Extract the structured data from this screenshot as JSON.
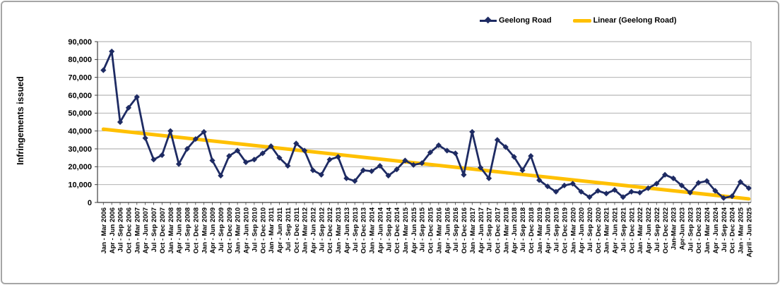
{
  "figure": {
    "background": "#ffffff",
    "border_color": "#a6a6a6"
  },
  "colors": {
    "series": "#1e2b63",
    "trend": "#ffc000",
    "gridline": "#a6a6a6",
    "axis": "#3f3f3f",
    "text": "#000000"
  },
  "chart_data": {
    "type": "line",
    "title": "",
    "xlabel": "",
    "ylabel": "Infringements issued",
    "ylim": [
      0,
      90000
    ],
    "ytick_step": 10000,
    "grid": "horizontal-only",
    "legend_position": "top-center",
    "marker": "diamond",
    "categories": [
      "Jan - Mar 2006",
      "Apr - Jun 2006",
      "Jul - Sep 2006",
      "Oct - Dec 2006",
      "Jan - Mar 2007",
      "Apr - Jun 2007",
      "Jul - Sep 2007",
      "Oct - Dec 2007",
      "Jan - Mar 2008",
      "Apr - Jun 2008",
      "Jul - Sep 2008",
      "Oct - Dec 2008",
      "Jan - Mar 2009",
      "Apr - Jun 2009",
      "Jul - Sep 2009",
      "Oct - Dec 2009",
      "Jan - Mar 2010",
      "Apr - Jun 2010",
      "Jul - Sep 2010",
      "Oct - Dec 2010",
      "Jan - Mar 2011",
      "Apr - Jun 2011",
      "Jul - Sep 2011",
      "Oct - Dec 2011",
      "Jan - Mar 2012",
      "Apr - Jun 2012",
      "Jul - Sep 2012",
      "Oct - Dec 2012",
      "Jan - Mar 2013",
      "Apr - Jun 2013",
      "Jul - Sep 2013",
      "Oct - Dec 2013",
      "Jan - Mar 2014",
      "Apr - Jun 2014",
      "Jul - Sep 2014",
      "Oct - Dec 2014",
      "Jan - Mar 2015",
      "Apr - Jun 2015",
      "Jul - Sep 2015",
      "Oct - Dec 2015",
      "Jan - Mar 2016",
      "Apr - Jun 2016",
      "Jul - Sep 2016",
      "Oct - Dec 2016",
      "Jan - Mar 2017",
      "Apr - Jun 2017",
      "Jul - Sep 2017",
      "Oct - Dec 2017",
      "Jan - Mar 2018",
      "Apr - Jun 2018",
      "Jul - Sep 2018",
      "Oct - Dec 2018",
      "Jan - Mar 2019",
      "Apr - Jun 2019",
      "Jul - Sep 2019",
      "Oct - Dec 2019",
      "Jan - Mar 2020",
      "Apr - Jun 2020",
      "Jul - Sep 2020",
      "Oct - Dec 2020",
      "Jan - Mar 2021",
      "Apr - Jun 2021",
      "Jul - Sep 2021",
      "Oct - Dec 2021",
      "Jan - Mar 2022",
      "Apr - Jun 2022",
      "Jul - Sep 2022",
      "Oct - Dec 2022",
      "Jan-Mar 2023",
      "Apr-Jun 2023",
      "Jul - Sep 2023",
      "Oct - Dec 2023",
      "Jan - Mar 2024",
      "Apr - Jun 2024",
      "Jul - Sep 2024",
      "Oct - Dec 2024",
      "Jan - Mar 2025",
      "April - Jun 2025"
    ],
    "series": [
      {
        "name": "Geelong Road",
        "color": "#1e2b63",
        "marker": "diamond",
        "values": [
          74000,
          84500,
          45000,
          53000,
          59000,
          36000,
          24000,
          26500,
          40000,
          21500,
          30000,
          35500,
          39500,
          23500,
          15000,
          26000,
          29000,
          22500,
          24000,
          27500,
          31500,
          25000,
          20500,
          33000,
          29000,
          18000,
          15500,
          24000,
          25500,
          13500,
          12000,
          18000,
          17500,
          20500,
          15000,
          18500,
          23500,
          21000,
          22000,
          28000,
          32000,
          29000,
          27500,
          15500,
          39500,
          19500,
          13500,
          35000,
          31000,
          25500,
          18000,
          26000,
          12500,
          9000,
          6000,
          9500,
          10500,
          6000,
          3000,
          6500,
          5000,
          7000,
          3000,
          6000,
          5500,
          8000,
          10500,
          15500,
          13500,
          9500,
          5500,
          11000,
          12000,
          6500,
          2500,
          3500,
          11500,
          8000
        ]
      },
      {
        "name": "Linear (Geelong Road)",
        "type": "linear-trendline",
        "color": "#ffc000",
        "trend_start": 41000,
        "trend_end": 2000
      }
    ]
  }
}
